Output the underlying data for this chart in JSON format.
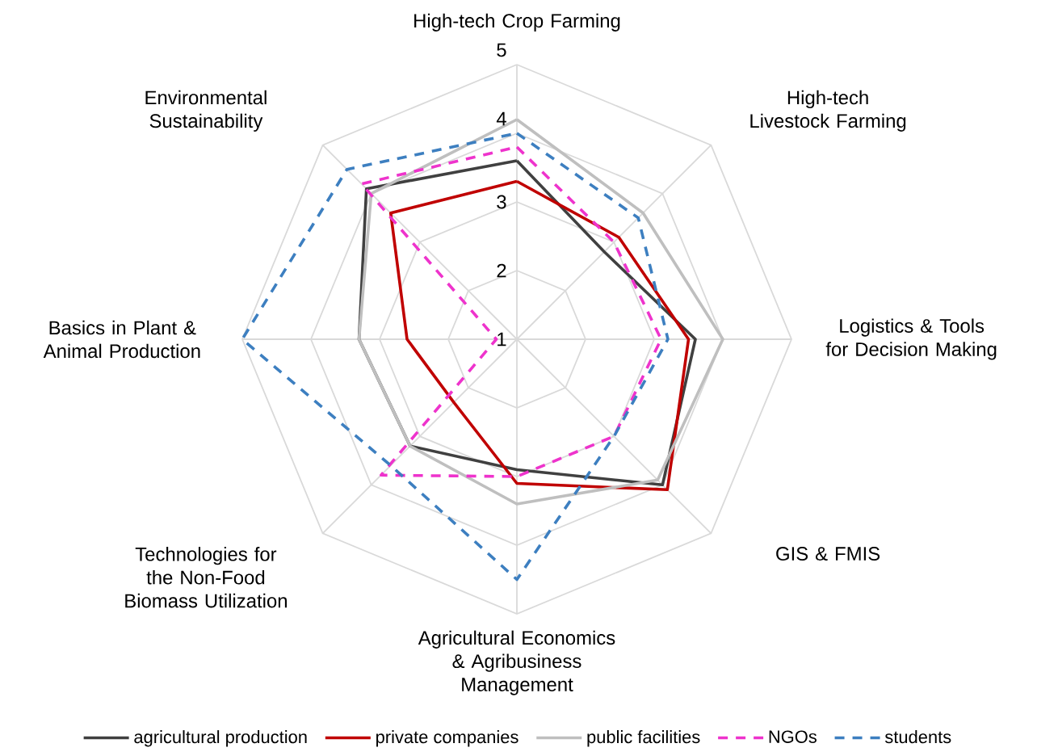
{
  "chart_data": {
    "type": "radar",
    "categories": [
      "High-tech Crop Farming",
      "High-tech Livestock Farming",
      "Logistics & Tools for Decision Making",
      "GIS & FMIS",
      "Agricultural Economics & Agribusiness Management",
      "Technologies for the Non-Food Biomass Utilization",
      "Basics in Plant & Animal Production",
      "Environmental Sustainability"
    ],
    "series": [
      {
        "name": "agricultural production",
        "color": "#404040",
        "line_style": "solid",
        "values": [
          3.6,
          2.8,
          3.6,
          4.0,
          2.9,
          3.2,
          3.3,
          4.1
        ]
      },
      {
        "name": "private companies",
        "color": "#c00000",
        "line_style": "solid",
        "values": [
          3.3,
          3.1,
          3.5,
          4.1,
          3.1,
          2.3,
          2.6,
          3.6
        ]
      },
      {
        "name": "public facilities",
        "color": "#bfbfbf",
        "line_style": "solid",
        "values": [
          4.2,
          3.6,
          4.0,
          3.9,
          3.4,
          3.2,
          3.3,
          4.0
        ]
      },
      {
        "name": "NGOs",
        "color": "#ee33cc",
        "line_style": "dashed",
        "values": [
          3.8,
          3.0,
          3.1,
          3.0,
          3.0,
          3.8,
          1.3,
          4.2
        ]
      },
      {
        "name": "students",
        "color": "#3d7fc0",
        "line_style": "dashed",
        "values": [
          4.0,
          3.5,
          3.2,
          3.0,
          4.5,
          3.6,
          5.0,
          4.5
        ]
      }
    ],
    "ylim": [
      1,
      5
    ],
    "yticks": [
      1,
      2,
      3,
      4,
      5
    ],
    "grid": true,
    "legend": "bottom"
  }
}
